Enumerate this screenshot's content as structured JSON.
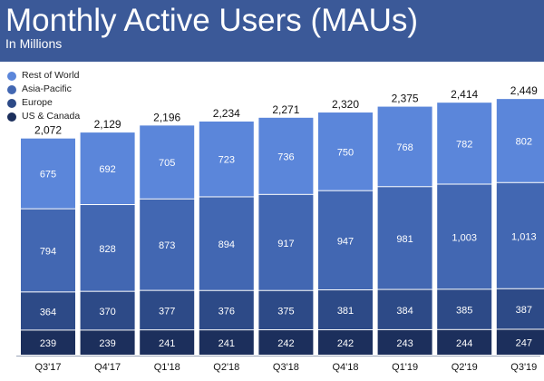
{
  "header": {
    "title": "Monthly Active Users (MAUs)",
    "subtitle": "In Millions"
  },
  "colors": {
    "header_bg": "#3b5998",
    "rest_of_world": "#5b86da",
    "asia_pacific": "#4267b2",
    "europe": "#2d4a87",
    "us_canada": "#1c2f5c"
  },
  "chart_data": {
    "type": "bar",
    "stacked": true,
    "title": "Monthly Active Users (MAUs)",
    "subtitle": "In Millions",
    "categories": [
      "Q3'17",
      "Q4'17",
      "Q1'18",
      "Q2'18",
      "Q3'18",
      "Q4'18",
      "Q1'19",
      "Q2'19",
      "Q3'19"
    ],
    "totals": [
      "2,072",
      "2,129",
      "2,196",
      "2,234",
      "2,271",
      "2,320",
      "2,375",
      "2,414",
      "2,449"
    ],
    "series": [
      {
        "name": "US & Canada",
        "color": "#1c2f5c",
        "values": [
          239,
          239,
          241,
          241,
          242,
          242,
          243,
          244,
          247
        ],
        "labels": [
          "239",
          "239",
          "241",
          "241",
          "242",
          "242",
          "243",
          "244",
          "247"
        ]
      },
      {
        "name": "Europe",
        "color": "#2d4a87",
        "values": [
          364,
          370,
          377,
          376,
          375,
          381,
          384,
          385,
          387
        ],
        "labels": [
          "364",
          "370",
          "377",
          "376",
          "375",
          "381",
          "384",
          "385",
          "387"
        ]
      },
      {
        "name": "Asia-Pacific",
        "color": "#4267b2",
        "values": [
          794,
          828,
          873,
          894,
          917,
          947,
          981,
          1003,
          1013
        ],
        "labels": [
          "794",
          "828",
          "873",
          "894",
          "917",
          "947",
          "981",
          "1,003",
          "1,013"
        ]
      },
      {
        "name": "Rest of World",
        "color": "#5b86da",
        "values": [
          675,
          692,
          705,
          723,
          736,
          750,
          768,
          782,
          802
        ],
        "labels": [
          "675",
          "692",
          "705",
          "723",
          "736",
          "750",
          "768",
          "782",
          "802"
        ]
      }
    ],
    "legend": [
      "Rest of World",
      "Asia-Pacific",
      "Europe",
      "US & Canada"
    ],
    "legend_placement": "top-left",
    "grid": false
  }
}
